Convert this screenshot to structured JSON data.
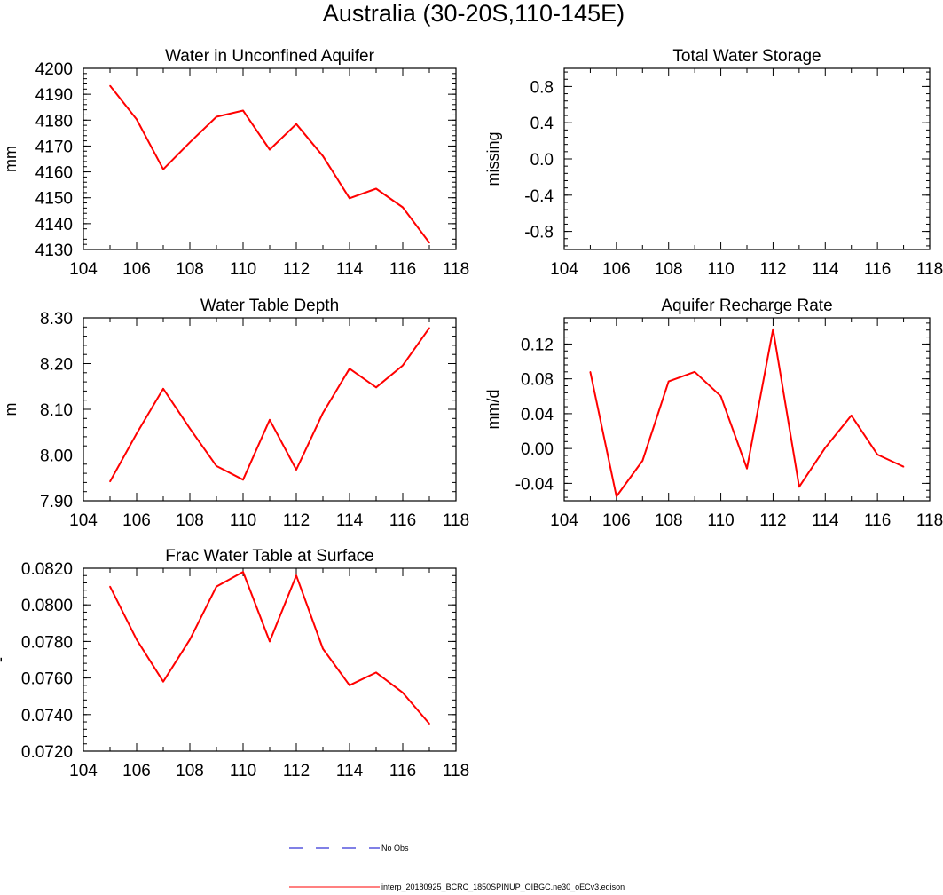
{
  "title": "Australia (30-20S,110-145E)",
  "colors": {
    "model_line": "#ff0000",
    "obs_line": "#0000cc",
    "axes": "#000000"
  },
  "legend": [
    {
      "label": "No Obs",
      "style": "dashed",
      "color": "#0000cc"
    },
    {
      "label": "interp_20180925_BCRC_1850SPINUP_OIBGC.ne30_oECv3.edison",
      "style": "solid",
      "color": "#ff0000"
    }
  ],
  "chart_data": [
    {
      "id": "unconfined",
      "type": "line",
      "title": "Water in Unconfined Aquifer",
      "ylabel": "mm",
      "xlim": [
        104,
        118
      ],
      "ylim": [
        4130,
        4200
      ],
      "xticks": [
        "104",
        "106",
        "108",
        "110",
        "112",
        "114",
        "116",
        "118"
      ],
      "yticks": [
        "4130",
        "4140",
        "4150",
        "4160",
        "4170",
        "4180",
        "4190",
        "4200"
      ],
      "series": [
        {
          "x": [
            105,
            106,
            107,
            108,
            109,
            110,
            111,
            112,
            113,
            114,
            115,
            116,
            117
          ],
          "y": [
            4193.3,
            4180.3,
            4161.0,
            4171.4,
            4181.3,
            4183.7,
            4168.6,
            4178.5,
            4166.1,
            4149.8,
            4153.5,
            4146.3,
            4132.6
          ]
        }
      ]
    },
    {
      "id": "tws",
      "type": "line",
      "title": "Total Water Storage",
      "ylabel": "missing",
      "xlim": [
        104,
        118
      ],
      "ylim": [
        -1,
        1
      ],
      "xticks": [
        "104",
        "106",
        "108",
        "110",
        "112",
        "114",
        "116",
        "118"
      ],
      "yticks": [
        "-0.8",
        "-0.4",
        "0.0",
        "0.4",
        "0.8"
      ],
      "series": []
    },
    {
      "id": "wtd",
      "type": "line",
      "title": "Water Table Depth",
      "ylabel": "m",
      "xlim": [
        104,
        118
      ],
      "ylim": [
        7.9,
        8.3
      ],
      "xticks": [
        "104",
        "106",
        "108",
        "110",
        "112",
        "114",
        "116",
        "118"
      ],
      "yticks": [
        "7.90",
        "8.00",
        "8.10",
        "8.20",
        "8.30"
      ],
      "series": [
        {
          "x": [
            105,
            106,
            107,
            108,
            109,
            110,
            111,
            112,
            113,
            114,
            115,
            116,
            117
          ],
          "y": [
            7.942,
            8.047,
            8.145,
            8.058,
            7.976,
            7.946,
            8.077,
            7.968,
            8.092,
            8.189,
            8.148,
            8.196,
            8.278
          ]
        }
      ]
    },
    {
      "id": "recharge",
      "type": "line",
      "title": "Aquifer Recharge Rate",
      "ylabel": "mm/d",
      "xlim": [
        104,
        118
      ],
      "ylim": [
        -0.06,
        0.15
      ],
      "xticks": [
        "104",
        "106",
        "108",
        "110",
        "112",
        "114",
        "116",
        "118"
      ],
      "yticks": [
        "-0.04",
        "0.00",
        "0.04",
        "0.08",
        "0.12"
      ],
      "series": [
        {
          "x": [
            105,
            106,
            107,
            108,
            109,
            110,
            111,
            112,
            113,
            114,
            115,
            116,
            117
          ],
          "y": [
            0.088,
            -0.055,
            -0.014,
            0.077,
            0.088,
            0.06,
            -0.023,
            0.137,
            -0.044,
            0.001,
            0.038,
            -0.007,
            -0.021
          ]
        }
      ]
    },
    {
      "id": "frac",
      "type": "line",
      "title": "Frac Water Table at Surface",
      "ylabel": "-",
      "xlim": [
        104,
        118
      ],
      "ylim": [
        0.072,
        0.082
      ],
      "xticks": [
        "104",
        "106",
        "108",
        "110",
        "112",
        "114",
        "116",
        "118"
      ],
      "yticks": [
        "0.0720",
        "0.0740",
        "0.0760",
        "0.0780",
        "0.0800",
        "0.0820"
      ],
      "series": [
        {
          "x": [
            105,
            106,
            107,
            108,
            109,
            110,
            111,
            112,
            113,
            114,
            115,
            116,
            117
          ],
          "y": [
            0.081,
            0.0781,
            0.0758,
            0.0781,
            0.081,
            0.0818,
            0.078,
            0.0816,
            0.0776,
            0.0756,
            0.0763,
            0.0752,
            0.0735
          ]
        }
      ]
    }
  ]
}
